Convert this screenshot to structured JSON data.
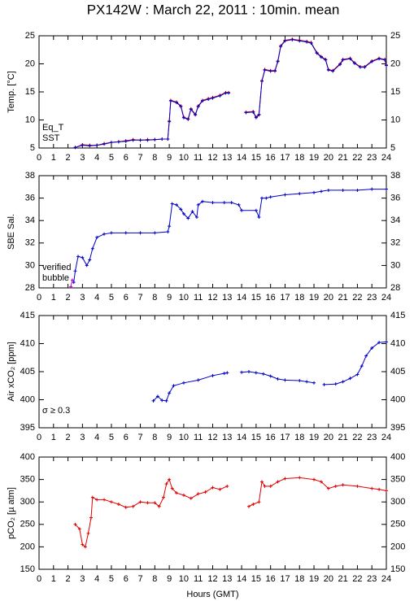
{
  "chart_data": [
    {
      "type": "line",
      "title": "PX142W : March 22, 2011 : 10min. mean",
      "ylabel": "Temp. [°C]",
      "xlim": [
        0,
        24
      ],
      "xticks": [
        0,
        1,
        2,
        3,
        4,
        5,
        6,
        7,
        8,
        9,
        10,
        11,
        12,
        13,
        14,
        15,
        16,
        17,
        18,
        19,
        20,
        21,
        22,
        23,
        24
      ],
      "ylim": [
        5,
        25
      ],
      "yticks": [
        5,
        10,
        15,
        20,
        25
      ],
      "series": [
        {
          "name": "Eq_T",
          "color": "#e00000",
          "x": [
            2.5,
            3,
            3.5,
            4,
            4.5,
            5,
            5.5,
            6,
            6.5,
            7,
            7.5,
            8,
            8.5,
            8.9,
            9.0,
            9.1,
            9.5,
            9.8,
            10,
            10.3,
            10.5,
            10.8,
            11,
            11.3,
            11.7,
            12,
            12.5,
            12.9,
            13.1,
            13.5,
            14.3,
            14.8,
            15.0,
            15.2,
            15.4,
            15.6,
            16,
            16.3,
            16.5,
            16.7,
            17,
            17.5,
            18,
            18.5,
            18.8,
            19.2,
            19.5,
            19.8,
            20,
            20.3,
            20.8,
            21,
            21.5,
            21.8,
            22.2,
            22.5,
            23,
            23.5,
            23.9,
            24
          ],
          "values": [
            5.1,
            5.6,
            5.5,
            5.5,
            5.8,
            6.0,
            6.1,
            6.3,
            6.5,
            6.4,
            6.5,
            6.5,
            6.6,
            6.6,
            9.8,
            13.5,
            13.2,
            12.5,
            10.5,
            10.2,
            12.0,
            11.0,
            12.5,
            13.5,
            13.8,
            14.0,
            14.4,
            14.9,
            14.9,
            null,
            11.4,
            11.5,
            10.5,
            11.0,
            17.0,
            19.0,
            18.8,
            18.8,
            20.5,
            23.2,
            24.2,
            24.4,
            24.2,
            24.0,
            23.8,
            22.0,
            21.3,
            20.8,
            19.0,
            18.8,
            20.0,
            20.8,
            21.0,
            20.2,
            19.5,
            19.5,
            20.5,
            21.0,
            20.8,
            19.8
          ]
        },
        {
          "name": "SST",
          "color": "#0000c8",
          "x": [
            2.5,
            3,
            3.5,
            4,
            4.5,
            5,
            5.5,
            6,
            6.5,
            7,
            7.5,
            8,
            8.5,
            8.9,
            9.0,
            9.1,
            9.5,
            9.8,
            10,
            10.3,
            10.5,
            10.8,
            11,
            11.3,
            11.7,
            12,
            12.5,
            12.9,
            13.1,
            13.5,
            14.3,
            14.8,
            15.0,
            15.2,
            15.4,
            15.6,
            16,
            16.3,
            16.5,
            16.7,
            17,
            17.5,
            18,
            18.5,
            18.8,
            19.2,
            19.5,
            19.8,
            20,
            20.3,
            20.8,
            21,
            21.5,
            21.8,
            22.2,
            22.5,
            23,
            23.5,
            23.9,
            24
          ],
          "values": [
            5.1,
            5.5,
            5.4,
            5.5,
            5.7,
            6.0,
            6.1,
            6.2,
            6.4,
            6.4,
            6.4,
            6.5,
            6.6,
            6.6,
            9.7,
            13.4,
            13.1,
            12.4,
            10.4,
            10.1,
            11.9,
            10.9,
            12.4,
            13.4,
            13.7,
            13.9,
            14.3,
            14.8,
            14.8,
            null,
            11.3,
            11.4,
            10.4,
            10.9,
            16.9,
            18.9,
            18.7,
            18.7,
            20.4,
            23.1,
            24.1,
            24.3,
            24.1,
            23.9,
            23.7,
            21.9,
            21.2,
            20.7,
            18.9,
            18.7,
            19.9,
            20.7,
            20.9,
            20.1,
            19.4,
            19.4,
            20.4,
            20.9,
            20.7,
            19.7
          ]
        }
      ]
    },
    {
      "type": "line",
      "ylabel": "SBE Sal.",
      "xlim": [
        0,
        24
      ],
      "xticks": [
        0,
        1,
        2,
        3,
        4,
        5,
        6,
        7,
        8,
        9,
        10,
        11,
        12,
        13,
        14,
        15,
        16,
        17,
        18,
        19,
        20,
        21,
        22,
        23,
        24
      ],
      "ylim": [
        28,
        38
      ],
      "yticks": [
        28,
        30,
        32,
        34,
        36,
        38
      ],
      "series": [
        {
          "name": "verified",
          "color": "#0000c8",
          "x": [
            2.4,
            2.5,
            2.7,
            3.0,
            3.3,
            3.5,
            3.7,
            4,
            4.5,
            5,
            6,
            7,
            8,
            8.9,
            9.0,
            9.2,
            9.5,
            9.8,
            10,
            10.3,
            10.6,
            10.9,
            11,
            11.3,
            12,
            12.8,
            13.3,
            13.8,
            14,
            15,
            15.2,
            15.4,
            15.7,
            16,
            17,
            18,
            19,
            19.5,
            20,
            21,
            22,
            23,
            24
          ],
          "values": [
            28.5,
            29.5,
            30.8,
            30.7,
            30.0,
            30.5,
            31.5,
            32.5,
            32.8,
            32.9,
            32.9,
            32.9,
            32.9,
            33.0,
            33.5,
            35.5,
            35.4,
            35.0,
            34.6,
            34.2,
            34.8,
            34.3,
            35.4,
            35.7,
            35.6,
            35.6,
            35.6,
            35.4,
            34.9,
            34.9,
            34.3,
            36.0,
            36.0,
            36.1,
            36.3,
            36.4,
            36.5,
            36.6,
            36.7,
            36.7,
            36.7,
            36.8,
            36.8
          ]
        },
        {
          "name": "bubble",
          "color": "#c000c0",
          "x": [
            2.2,
            2.3
          ],
          "values": [
            28.1,
            28.7
          ]
        }
      ]
    },
    {
      "type": "line",
      "ylabel": "Air xCO₂ [ppm]",
      "annotation": "σ ≥ 0.3",
      "annotation_color": "#c000c0",
      "xlim": [
        0,
        24
      ],
      "xticks": [
        0,
        1,
        2,
        3,
        4,
        5,
        6,
        7,
        8,
        9,
        10,
        11,
        12,
        13,
        14,
        15,
        16,
        17,
        18,
        19,
        20,
        21,
        22,
        23,
        24
      ],
      "ylim": [
        395,
        415
      ],
      "yticks": [
        395,
        400,
        405,
        410,
        415
      ],
      "series": [
        {
          "name": "Air xCO₂",
          "color": "#0000c8",
          "x": [
            7.9,
            8.2,
            8.5,
            8.8,
            9.0,
            9.3,
            10,
            11,
            12,
            12.8,
            13,
            13.5,
            14,
            14.5,
            15,
            15.5,
            16,
            16.5,
            17,
            18,
            18.5,
            19,
            19.4,
            19.7,
            20.5,
            21,
            21.5,
            22,
            22.3,
            22.6,
            23,
            23.5,
            24
          ],
          "values": [
            399.8,
            400.6,
            399.9,
            399.8,
            401.2,
            402.5,
            403.0,
            403.5,
            404.3,
            404.7,
            404.8,
            null,
            404.9,
            405.0,
            404.8,
            404.6,
            404.2,
            403.7,
            403.5,
            403.4,
            403.2,
            403.0,
            null,
            402.7,
            402.8,
            403.2,
            403.8,
            404.5,
            406.0,
            407.8,
            409.2,
            410.2,
            410.3
          ]
        }
      ]
    },
    {
      "type": "line",
      "ylabel": "pCO₂ [µ atm]",
      "xlabel": "Hours (GMT)",
      "xlim": [
        0,
        24
      ],
      "xticks": [
        0,
        1,
        2,
        3,
        4,
        5,
        6,
        7,
        8,
        9,
        10,
        11,
        12,
        13,
        14,
        15,
        16,
        17,
        18,
        19,
        20,
        21,
        22,
        23,
        24
      ],
      "ylim": [
        150,
        400
      ],
      "yticks": [
        150,
        200,
        250,
        300,
        350,
        400
      ],
      "series": [
        {
          "name": "pCO₂",
          "color": "#e00000",
          "x": [
            2.5,
            2.8,
            3.0,
            3.2,
            3.4,
            3.6,
            3.7,
            4,
            4.5,
            5,
            5.5,
            6,
            6.5,
            7,
            7.5,
            8,
            8.3,
            8.6,
            8.8,
            9.0,
            9.2,
            9.5,
            10,
            10.5,
            11,
            11.5,
            12,
            12.5,
            13,
            13.8,
            14.5,
            14.8,
            15.2,
            15.4,
            15.6,
            16,
            16.5,
            17,
            18,
            19,
            19.5,
            20,
            20.5,
            21,
            22,
            23,
            23.5,
            24
          ],
          "values": [
            250,
            240,
            205,
            200,
            230,
            265,
            310,
            305,
            305,
            300,
            295,
            288,
            290,
            300,
            298,
            298,
            290,
            310,
            340,
            350,
            330,
            320,
            315,
            308,
            318,
            322,
            332,
            328,
            335,
            null,
            290,
            295,
            300,
            345,
            335,
            335,
            345,
            352,
            354,
            350,
            345,
            330,
            335,
            338,
            335,
            330,
            328,
            325
          ]
        }
      ]
    }
  ]
}
